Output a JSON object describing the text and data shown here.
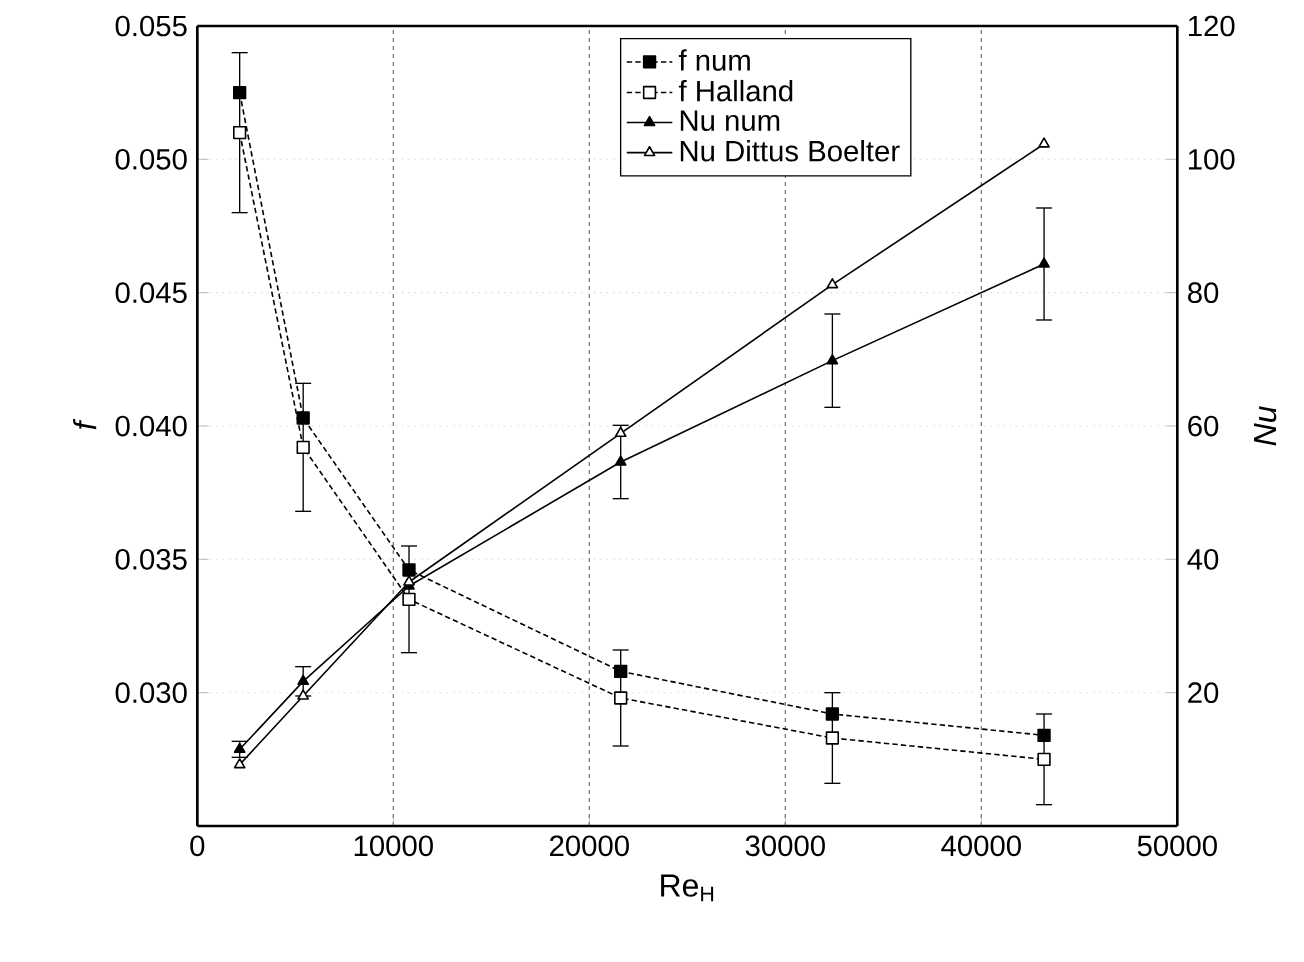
{
  "chart_data": {
    "type": "line",
    "xlabel": "Re$_{H}$",
    "ylabel": "f",
    "y2label": "Nu",
    "x": [
      2160,
      5400,
      10800,
      21600,
      32400,
      43200
    ],
    "series": [
      {
        "name": "f num",
        "color": "#000000",
        "marker": "square",
        "line_style": "dashed",
        "values": [
          0.0525,
          0.0403,
          0.0346,
          0.0308,
          0.0292,
          0.0284
        ]
      },
      {
        "name": "f Halland",
        "color": "#000000",
        "marker": "square",
        "line_style": "dashed",
        "values": [
          0.051,
          0.0392,
          0.0335,
          0.0298,
          0.0283,
          0.0275
        ],
        "errors": [
          0.003,
          0.0024,
          0.002,
          0.0018,
          0.0017,
          0.0017
        ]
      },
      {
        "name": "Nu num",
        "color": "#000000",
        "marker": "triangle",
        "line_style": "solid",
        "axis": "y2",
        "values": [
          11.5,
          21.7,
          36.0,
          54.6,
          69.8,
          84.3
        ],
        "errors": [
          1.2,
          2.2,
          null,
          5.5,
          7.0,
          8.4
        ]
      },
      {
        "name": "Nu Dittus Boelter",
        "color": "#000000",
        "marker": "triangle",
        "line_style": "solid",
        "axis": "y2",
        "values": [
          9.2,
          19.5,
          36.6,
          58.9,
          81.2,
          102.3
        ]
      }
    ],
    "xlim": [
      0,
      50000
    ],
    "xticks": [
      0,
      10000,
      20000,
      30000,
      40000,
      50000
    ],
    "ylim": [
      0.025,
      0.055
    ],
    "yticks": [
      {
        "value": 0.03,
        "label": "0.030"
      },
      {
        "value": 0.035,
        "label": "0.035"
      },
      {
        "value": 0.04,
        "label": "0.040"
      },
      {
        "value": 0.045,
        "label": "0.045"
      },
      {
        "value": 0.05,
        "label": "0.050"
      },
      {
        "value": 0.055,
        "label": "0.055"
      }
    ],
    "y2lim": [
      0,
      120
    ],
    "y2ticks": [
      20,
      40,
      60,
      80,
      100,
      120
    ],
    "grid": true,
    "legend": "top"
  }
}
